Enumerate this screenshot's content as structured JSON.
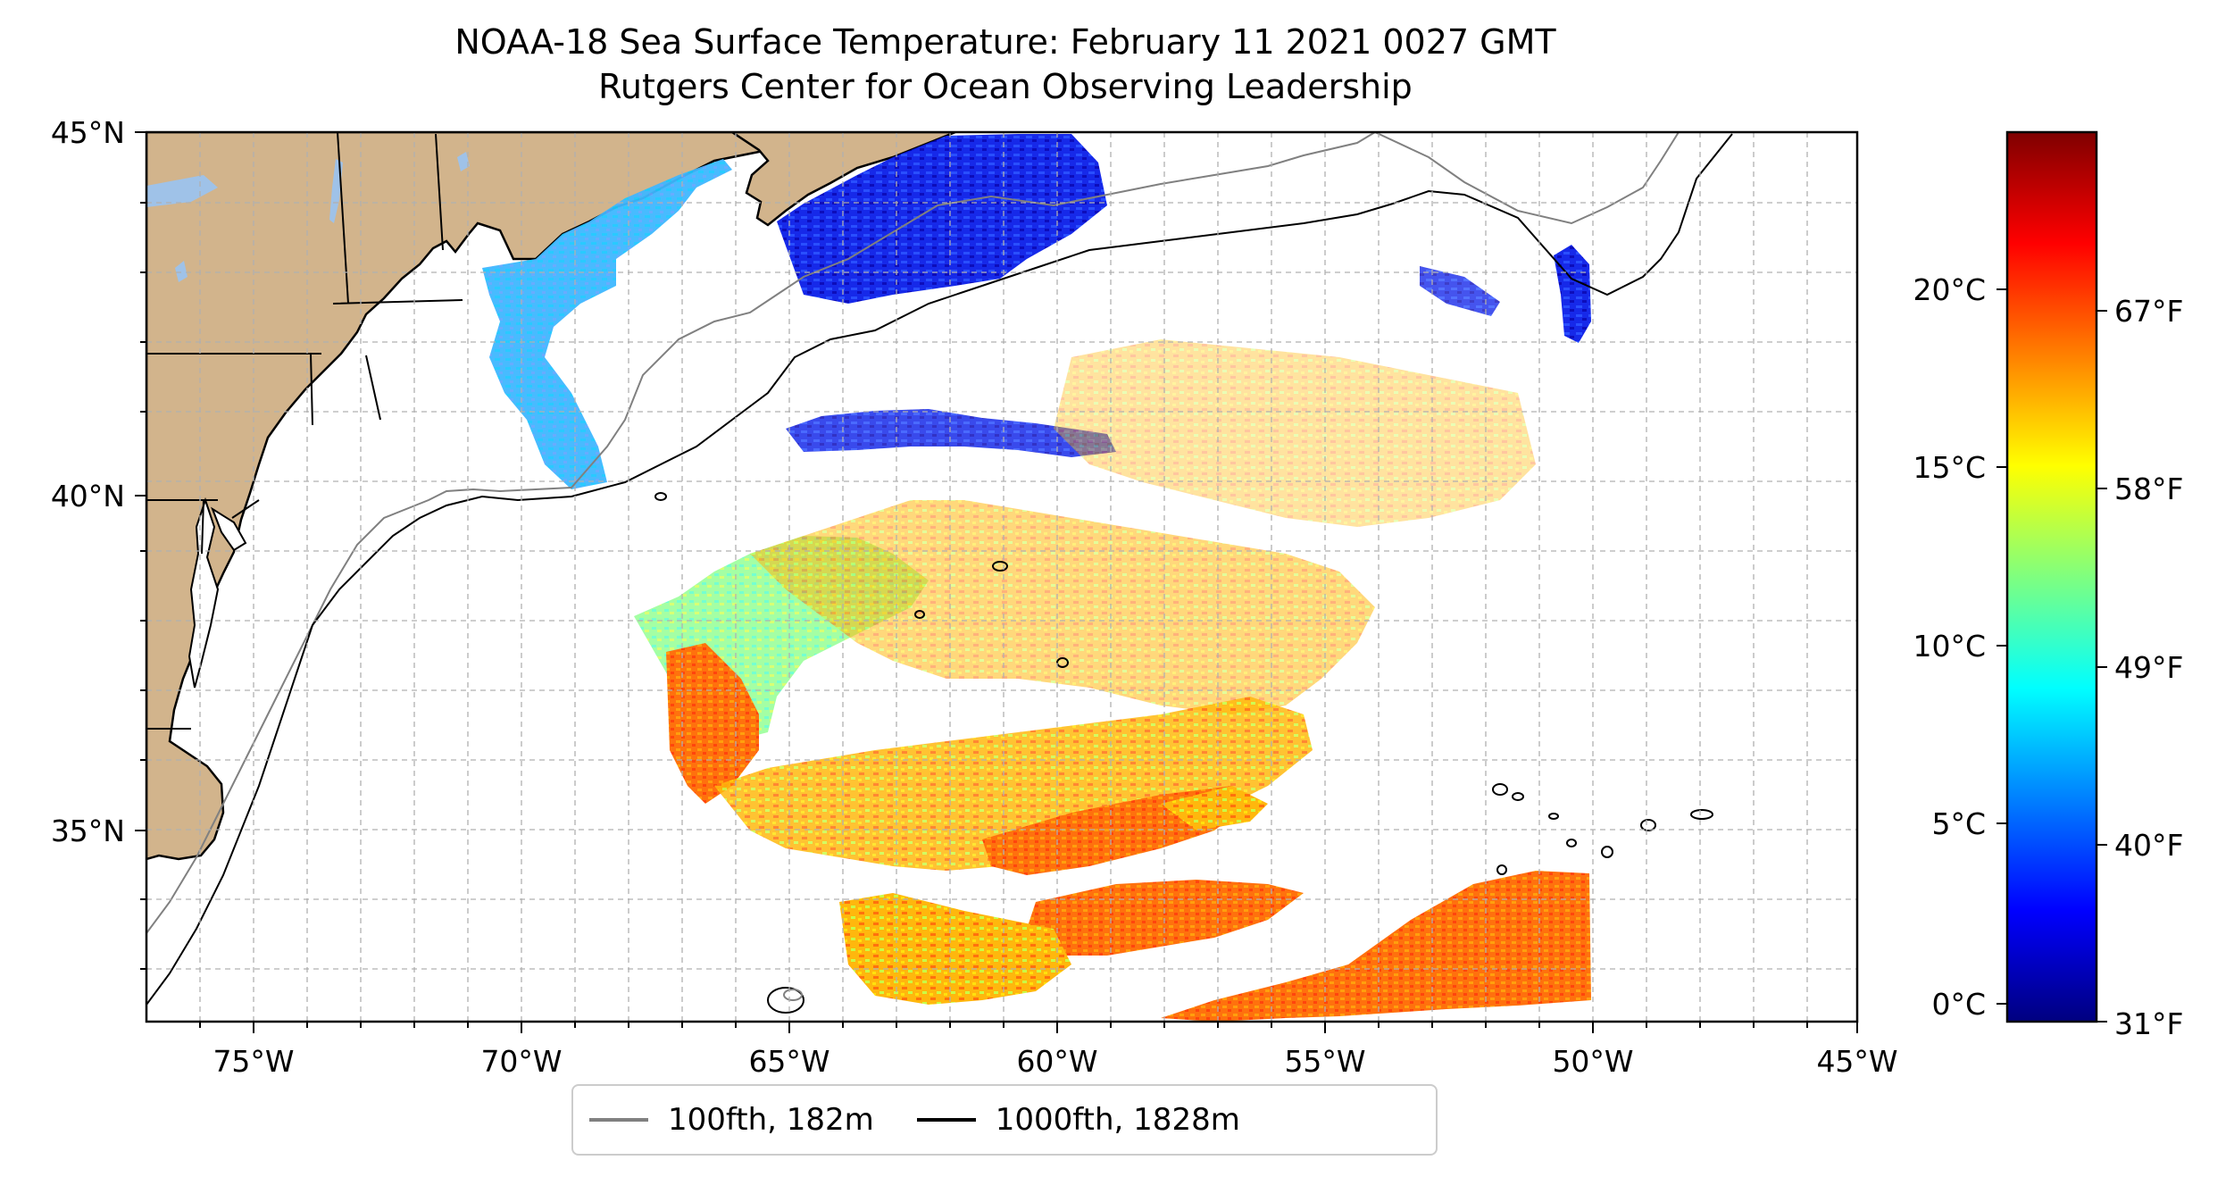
{
  "title": {
    "line1": "NOAA-18 Sea Surface Temperature: February 11 2021 0027 GMT",
    "line2": "Rutgers Center for Ocean Observing Leadership"
  },
  "map": {
    "lon_range": [
      -77,
      -45
    ],
    "lat_range": [
      32.2,
      45
    ],
    "lon_ticks": [
      "75°W",
      "70°W",
      "65°W",
      "60°W",
      "55°W",
      "50°W",
      "45°W"
    ],
    "lat_ticks": [
      "45°N",
      "40°N",
      "35°N"
    ],
    "gridlines": true,
    "land_color": "#d2b48c",
    "lake_color": "#9fc2e8",
    "isobath_100_color": "#808080",
    "isobath_1000_color": "#000000",
    "colormap": "jet"
  },
  "colorbar": {
    "celsius_labels": [
      "20°C",
      "15°C",
      "10°C",
      "5°C",
      "0°C"
    ],
    "fahrenheit_labels": [
      "67°F",
      "58°F",
      "49°F",
      "40°F",
      "31°F"
    ],
    "range_c": [
      -0.5,
      24.5
    ]
  },
  "legend": {
    "items": [
      {
        "label": "100fth, 182m",
        "color": "#808080"
      },
      {
        "label": "1000fth, 1828m",
        "color": "#000000"
      }
    ]
  }
}
